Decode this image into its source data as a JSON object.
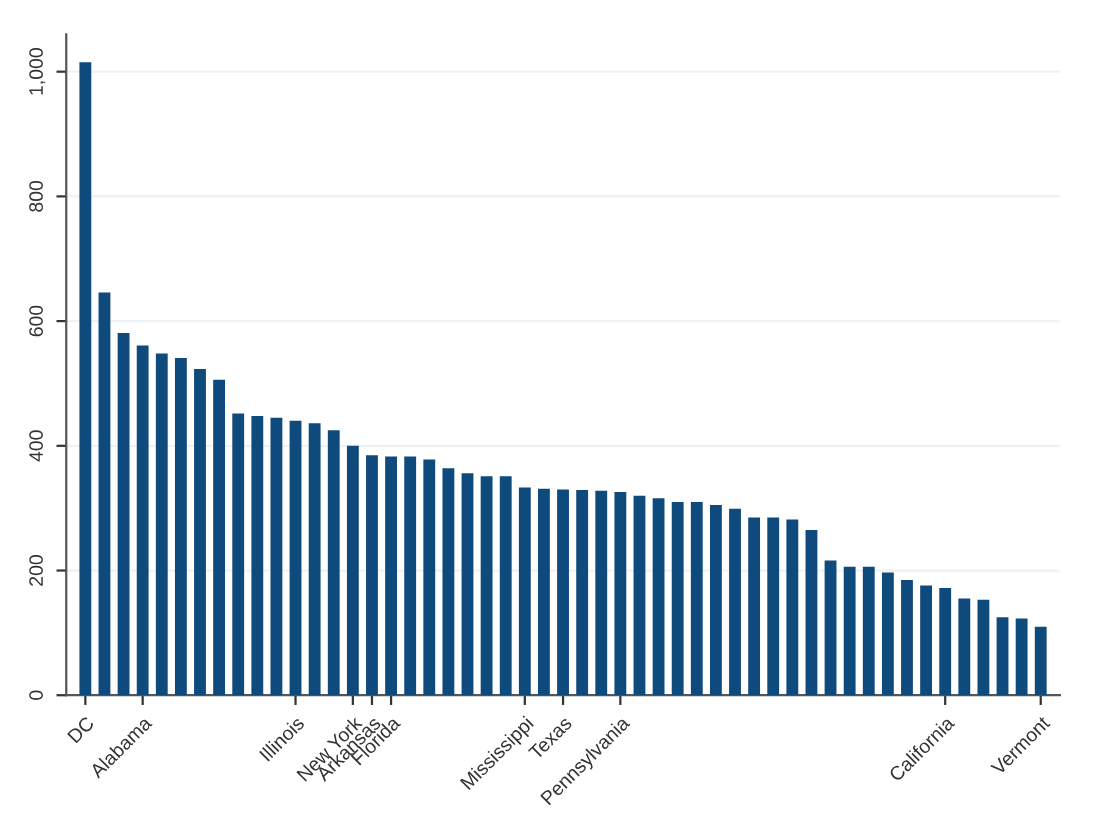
{
  "chart_data": {
    "type": "bar",
    "categories": [
      "DC",
      null,
      null,
      "Alabama",
      null,
      null,
      null,
      null,
      null,
      null,
      null,
      "Illinois",
      null,
      null,
      "New York",
      "Arkansas",
      "Florida",
      null,
      null,
      null,
      null,
      null,
      null,
      "Mississippi",
      null,
      "Texas",
      null,
      null,
      "Pennsylvania",
      null,
      null,
      null,
      null,
      null,
      null,
      null,
      null,
      null,
      null,
      null,
      null,
      null,
      null,
      null,
      null,
      "California",
      null,
      null,
      null,
      null,
      "Vermont"
    ],
    "values": [
      1015,
      646,
      581,
      561,
      548,
      541,
      523,
      506,
      452,
      448,
      445,
      440,
      436,
      425,
      400,
      385,
      383,
      383,
      378,
      364,
      356,
      351,
      351,
      333,
      331,
      330,
      329,
      328,
      326,
      320,
      316,
      310,
      310,
      305,
      299,
      285,
      285,
      282,
      265,
      216,
      206,
      206,
      197,
      185,
      176,
      172,
      155,
      153,
      125,
      123,
      110
    ],
    "color": "#0f4a7c",
    "ylim": [
      0,
      1060
    ],
    "yticks": [
      0,
      200,
      400,
      600,
      800,
      {
        "value": 1000,
        "label": "1,000"
      }
    ],
    "grid": "y"
  }
}
